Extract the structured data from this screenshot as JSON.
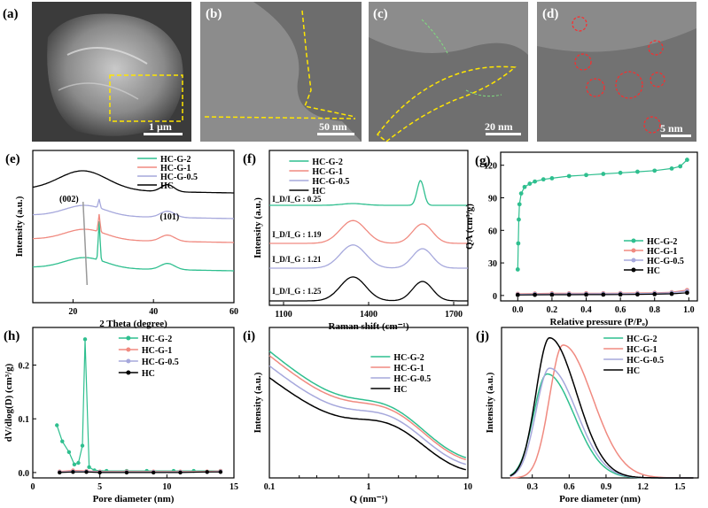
{
  "figure": {
    "micrographs": [
      {
        "label": "(a)",
        "scale_bar": "1 µm"
      },
      {
        "label": "(b)",
        "scale_bar": "50 nm"
      },
      {
        "label": "(c)",
        "scale_bar": "20 nm"
      },
      {
        "label": "(d)",
        "scale_bar": "5 nm"
      }
    ],
    "colors": {
      "HC-G-2": "#2fbf8f",
      "HC-G-1": "#f08a80",
      "HC-G-0.5": "#a6a8dc",
      "HC": "#000000"
    }
  },
  "chart_data": [
    {
      "panel": "(e)",
      "type": "line",
      "title": "",
      "xlabel": "2 Theta (degree)",
      "ylabel": "Intensity (a.u.)",
      "xlim": [
        10,
        60
      ],
      "xticks": [
        20,
        40,
        60
      ],
      "annotations": [
        "(002)",
        "(101)"
      ],
      "series": [
        {
          "name": "HC-G-2",
          "peaks": [
            26.5,
            43.5
          ],
          "offset": 3
        },
        {
          "name": "HC-G-1",
          "peaks": [
            26.5,
            43.5
          ],
          "offset": 2
        },
        {
          "name": "HC-G-0.5",
          "peaks": [
            26.5,
            43.5
          ],
          "offset": 1
        },
        {
          "name": "HC",
          "peaks": [
            23,
            43.5
          ],
          "offset": 0
        }
      ]
    },
    {
      "panel": "(f)",
      "type": "line",
      "title": "",
      "xlabel": "Raman shift (cm⁻¹)",
      "ylabel": "Intensity (a.u.)",
      "xlim": [
        1050,
        1750
      ],
      "xticks": [
        1100,
        1400,
        1700
      ],
      "annotations": [
        "I_D/I_G : 0.25",
        "I_D/I_G : 1.19",
        "I_D/I_G : 1.21",
        "I_D/I_G : 1.25"
      ],
      "series": [
        {
          "name": "HC-G-2",
          "id_ig": 0.25
        },
        {
          "name": "HC-G-1",
          "id_ig": 1.19
        },
        {
          "name": "HC-G-0.5",
          "id_ig": 1.21
        },
        {
          "name": "HC",
          "id_ig": 1.25
        }
      ]
    },
    {
      "panel": "(g)",
      "type": "scatter",
      "title": "",
      "xlabel": "Relative pressure (P/Pₒ)",
      "ylabel": "QA (cm³/g)",
      "xlim": [
        -0.1,
        1.05
      ],
      "ylim": [
        -5,
        132
      ],
      "xticks": [
        0.0,
        0.2,
        0.4,
        0.6,
        0.8,
        1.0
      ],
      "yticks": [
        0,
        30,
        60,
        90,
        120
      ],
      "series": [
        {
          "name": "HC-G-2",
          "x": [
            0.0,
            0.003,
            0.006,
            0.01,
            0.02,
            0.04,
            0.07,
            0.1,
            0.15,
            0.2,
            0.3,
            0.4,
            0.5,
            0.6,
            0.7,
            0.8,
            0.9,
            0.95,
            0.99
          ],
          "y": [
            24,
            48,
            70,
            84,
            94,
            100,
            103,
            105,
            107,
            108,
            110,
            111,
            112,
            113,
            114,
            115,
            117,
            119,
            125
          ]
        },
        {
          "name": "HC-G-1",
          "x": [
            0.0,
            0.1,
            0.2,
            0.3,
            0.4,
            0.5,
            0.6,
            0.7,
            0.8,
            0.9,
            0.99
          ],
          "y": [
            1.5,
            1.8,
            2,
            2,
            2.1,
            2.1,
            2.2,
            2.3,
            2.5,
            3,
            5
          ]
        },
        {
          "name": "HC-G-0.5",
          "x": [
            0.0,
            0.1,
            0.2,
            0.3,
            0.4,
            0.5,
            0.6,
            0.7,
            0.8,
            0.9,
            0.99
          ],
          "y": [
            1,
            1.3,
            1.4,
            1.5,
            1.5,
            1.6,
            1.7,
            1.8,
            2,
            2.5,
            4
          ]
        },
        {
          "name": "HC",
          "x": [
            0.0,
            0.1,
            0.2,
            0.3,
            0.4,
            0.5,
            0.6,
            0.7,
            0.8,
            0.9,
            0.99
          ],
          "y": [
            0.5,
            0.6,
            0.7,
            0.7,
            0.8,
            0.8,
            0.9,
            1,
            1.2,
            1.5,
            2.5
          ]
        }
      ]
    },
    {
      "panel": "(h)",
      "type": "line",
      "title": "",
      "xlabel": "Pore diameter (nm)",
      "ylabel": "dV/dlog(D) (cm³/g)",
      "xlim": [
        0,
        15
      ],
      "ylim": [
        -0.01,
        0.27
      ],
      "xticks": [
        0,
        5,
        10,
        15
      ],
      "yticks": [
        0.0,
        0.1,
        0.2
      ],
      "series": [
        {
          "name": "HC-G-2",
          "x": [
            1.8,
            2.2,
            2.7,
            3.1,
            3.4,
            3.7,
            3.9,
            4.2,
            4.6,
            5.5,
            7,
            8.5,
            10.5,
            12,
            14
          ],
          "y": [
            0.088,
            0.058,
            0.038,
            0.015,
            0.018,
            0.05,
            0.248,
            0.01,
            0.004,
            0.003,
            0.003,
            0.003,
            0.003,
            0.003,
            0.003
          ]
        },
        {
          "name": "HC-G-1",
          "x": [
            2,
            3,
            4,
            5,
            7,
            9,
            11,
            13,
            14
          ],
          "y": [
            0.002,
            0.004,
            0.003,
            0.002,
            0.002,
            0.002,
            0.002,
            0.002,
            0.003
          ]
        },
        {
          "name": "HC-G-0.5",
          "x": [
            2,
            3,
            4,
            5,
            7,
            9,
            11,
            13,
            14
          ],
          "y": [
            0.001,
            0.002,
            0.002,
            0.001,
            0.001,
            0.001,
            0.001,
            0.001,
            0.002
          ]
        },
        {
          "name": "HC",
          "x": [
            2,
            3,
            4,
            5,
            7,
            9,
            11,
            13,
            14
          ],
          "y": [
            0.0,
            0.001,
            0.001,
            0.0,
            0.0,
            0.0,
            0.0,
            0.001,
            0.001
          ]
        }
      ]
    },
    {
      "panel": "(i)",
      "type": "line",
      "title": "",
      "xlabel": "Q (nm⁻¹)",
      "ylabel": "Intensity (a.u.)",
      "xscale": "log",
      "xlim": [
        0.1,
        10
      ],
      "xticks": [
        0.1,
        1,
        10
      ],
      "series": [
        {
          "name": "HC-G-2",
          "shift": 0.08
        },
        {
          "name": "HC-G-1",
          "shift": 0.05
        },
        {
          "name": "HC-G-0.5",
          "shift": -0.02
        },
        {
          "name": "HC",
          "shift": -0.1
        }
      ]
    },
    {
      "panel": "(j)",
      "type": "line",
      "title": "",
      "xlabel": "Pore diameter (nm)",
      "ylabel": "Intensity (a.u.)",
      "xlim": [
        0.05,
        1.65
      ],
      "xticks": [
        0.3,
        0.6,
        0.9,
        1.2,
        1.5
      ],
      "series": [
        {
          "name": "HC-G-2",
          "peak": 0.42,
          "height": 0.72
        },
        {
          "name": "HC-G-1",
          "peak": 0.55,
          "height": 0.92
        },
        {
          "name": "HC-G-0.5",
          "peak": 0.44,
          "height": 0.76
        },
        {
          "name": "HC",
          "peak": 0.44,
          "height": 0.97
        }
      ]
    }
  ]
}
